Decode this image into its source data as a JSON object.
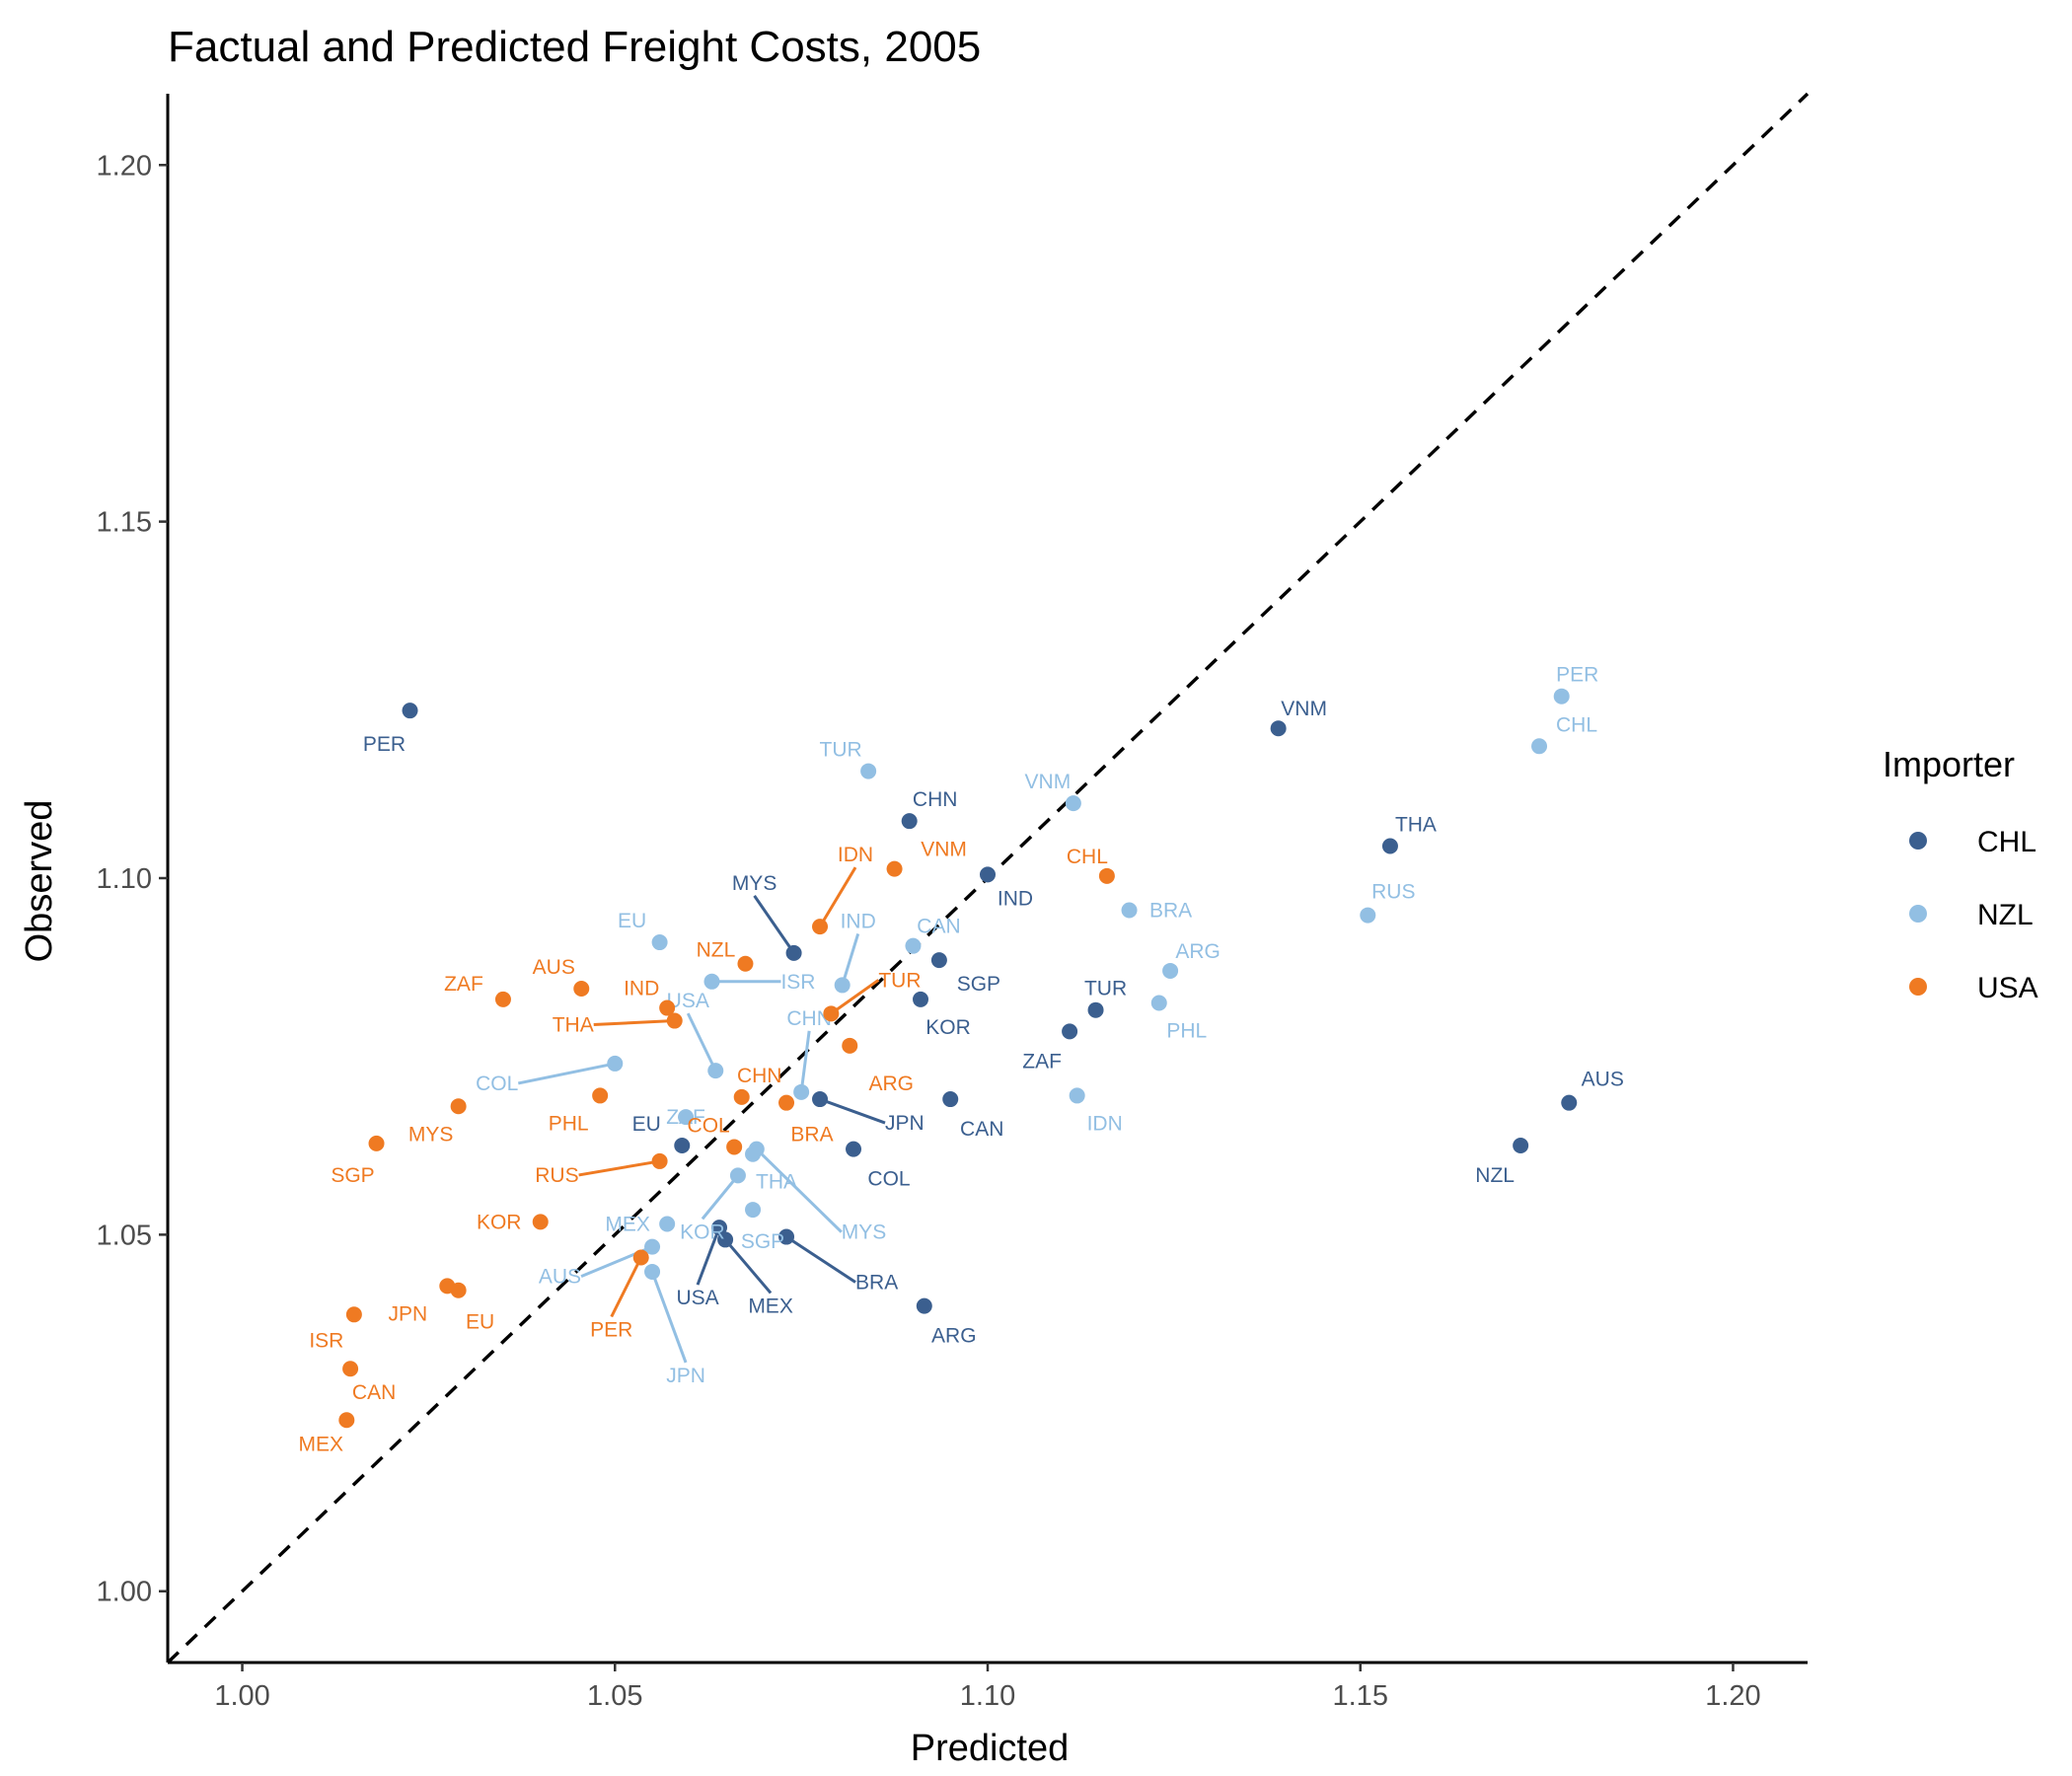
{
  "chart_data": {
    "type": "scatter",
    "title": "Factual and Predicted Freight Costs, 2005",
    "xlabel": "Predicted",
    "ylabel": "Observed",
    "xlim": [
      0.99,
      1.21
    ],
    "ylim": [
      0.99,
      1.21
    ],
    "x_ticks": [
      "1.00",
      "1.05",
      "1.10",
      "1.15",
      "1.20"
    ],
    "y_ticks": [
      "1.00",
      "1.05",
      "1.10",
      "1.15",
      "1.20"
    ],
    "reference_line": "y = x (dashed)",
    "grid": false,
    "legend": {
      "title": "Importer",
      "position": "right"
    },
    "series": [
      {
        "name": "CHL",
        "color": "#3b5f8f",
        "points": [
          {
            "label": "PER",
            "x": 1.0225,
            "y": 1.1235
          },
          {
            "label": "VNM",
            "x": 1.139,
            "y": 1.121
          },
          {
            "label": "THA",
            "x": 1.154,
            "y": 1.1045
          },
          {
            "label": "CHN",
            "x": 1.0895,
            "y": 1.108
          },
          {
            "label": "IND",
            "x": 1.1,
            "y": 1.1005
          },
          {
            "label": "MYS",
            "x": 1.074,
            "y": 1.0895
          },
          {
            "label": "SGP",
            "x": 1.0935,
            "y": 1.0885
          },
          {
            "label": "KOR",
            "x": 1.091,
            "y": 1.083
          },
          {
            "label": "TUR",
            "x": 1.1145,
            "y": 1.0815
          },
          {
            "label": "ZAF",
            "x": 1.111,
            "y": 1.0785
          },
          {
            "label": "AUS",
            "x": 1.178,
            "y": 1.0685
          },
          {
            "label": "NZL",
            "x": 1.1715,
            "y": 1.0625
          },
          {
            "label": "CAN",
            "x": 1.095,
            "y": 1.069
          },
          {
            "label": "JPN",
            "x": 1.0775,
            "y": 1.069
          },
          {
            "label": "COL",
            "x": 1.082,
            "y": 1.062
          },
          {
            "label": "EU",
            "x": 1.059,
            "y": 1.0625
          },
          {
            "label": "USA",
            "x": 1.064,
            "y": 1.051
          },
          {
            "label": "MEX",
            "x": 1.0648,
            "y": 1.0493
          },
          {
            "label": "BRA",
            "x": 1.073,
            "y": 1.0497
          },
          {
            "label": "ARG",
            "x": 1.0915,
            "y": 1.04
          }
        ]
      },
      {
        "name": "NZL",
        "color": "#92bfe3",
        "points": [
          {
            "label": "PER",
            "x": 1.177,
            "y": 1.1255
          },
          {
            "label": "CHL",
            "x": 1.174,
            "y": 1.1185
          },
          {
            "label": "TUR",
            "x": 1.084,
            "y": 1.115
          },
          {
            "label": "VNM",
            "x": 1.1115,
            "y": 1.1105
          },
          {
            "label": "BRA",
            "x": 1.119,
            "y": 1.0955
          },
          {
            "label": "RUS",
            "x": 1.151,
            "y": 1.0948
          },
          {
            "label": "EU",
            "x": 1.056,
            "y": 1.091
          },
          {
            "label": "CAN",
            "x": 1.09,
            "y": 1.0905
          },
          {
            "label": "ARG",
            "x": 1.1245,
            "y": 1.087
          },
          {
            "label": "ISR",
            "x": 1.063,
            "y": 1.0855
          },
          {
            "label": "IND",
            "x": 1.0805,
            "y": 1.085
          },
          {
            "label": "PHL",
            "x": 1.123,
            "y": 1.0825
          },
          {
            "label": "COL",
            "x": 1.05,
            "y": 1.074
          },
          {
            "label": "USA",
            "x": 1.0635,
            "y": 1.073
          },
          {
            "label": "IDN",
            "x": 1.112,
            "y": 1.0695
          },
          {
            "label": "CHN",
            "x": 1.075,
            "y": 1.07
          },
          {
            "label": "ZAF",
            "x": 1.0595,
            "y": 1.0665
          },
          {
            "label": "MYS",
            "x": 1.069,
            "y": 1.062
          },
          {
            "label": "THA",
            "x": 1.0685,
            "y": 1.0613
          },
          {
            "label": "KOR",
            "x": 1.0665,
            "y": 1.0583
          },
          {
            "label": "SGP",
            "x": 1.0685,
            "y": 1.0535
          },
          {
            "label": "MEX",
            "x": 1.057,
            "y": 1.0515
          },
          {
            "label": "AUS",
            "x": 1.055,
            "y": 1.0483
          },
          {
            "label": "JPN",
            "x": 1.055,
            "y": 1.0448
          }
        ]
      },
      {
        "name": "USA",
        "color": "#ef7a22",
        "points": [
          {
            "label": "VNM",
            "x": 1.0875,
            "y": 1.1013
          },
          {
            "label": "CHL",
            "x": 1.116,
            "y": 1.1003
          },
          {
            "label": "IDN",
            "x": 1.0775,
            "y": 1.0932
          },
          {
            "label": "NZL",
            "x": 1.0675,
            "y": 1.088
          },
          {
            "label": "ZAF",
            "x": 1.035,
            "y": 1.083
          },
          {
            "label": "AUS",
            "x": 1.0455,
            "y": 1.0845
          },
          {
            "label": "IND",
            "x": 1.057,
            "y": 1.0818
          },
          {
            "label": "THA",
            "x": 1.058,
            "y": 1.08
          },
          {
            "label": "TUR",
            "x": 1.079,
            "y": 1.081
          },
          {
            "label": "ARG",
            "x": 1.0815,
            "y": 1.0765
          },
          {
            "label": "MYS",
            "x": 1.029,
            "y": 1.068
          },
          {
            "label": "PHL",
            "x": 1.048,
            "y": 1.0695
          },
          {
            "label": "CHN",
            "x": 1.067,
            "y": 1.0693
          },
          {
            "label": "BRA",
            "x": 1.073,
            "y": 1.0685
          },
          {
            "label": "SGP",
            "x": 1.018,
            "y": 1.0628
          },
          {
            "label": "COL",
            "x": 1.066,
            "y": 1.0623
          },
          {
            "label": "RUS",
            "x": 1.056,
            "y": 1.0603
          },
          {
            "label": "KOR",
            "x": 1.04,
            "y": 1.0518
          },
          {
            "label": "PER",
            "x": 1.0535,
            "y": 1.0468
          },
          {
            "label": "JPN",
            "x": 1.0275,
            "y": 1.0428
          },
          {
            "label": "EU",
            "x": 1.029,
            "y": 1.0422
          },
          {
            "label": "ISR",
            "x": 1.015,
            "y": 1.0388
          },
          {
            "label": "CAN",
            "x": 1.0145,
            "y": 1.0312
          },
          {
            "label": "MEX",
            "x": 1.014,
            "y": 1.024
          }
        ]
      }
    ]
  }
}
